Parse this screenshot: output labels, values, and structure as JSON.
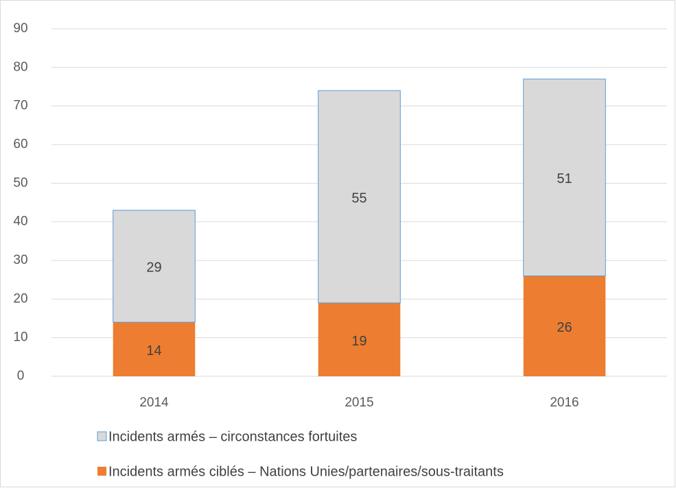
{
  "chart_data": {
    "type": "stacked_bar",
    "categories": [
      "2014",
      "2015",
      "2016"
    ],
    "series": [
      {
        "name": "Incidents armés ciblés – Nations Unies/partenaires/sous-traitants",
        "color": "#ed7d31",
        "values": [
          14,
          19,
          26
        ]
      },
      {
        "name": "Incidents armés – circonstances fortuites",
        "color": "#d9d9d9",
        "edgecolor": "#5b9bd5",
        "values": [
          29,
          55,
          51
        ]
      }
    ],
    "ylim": [
      0,
      90
    ],
    "yticks": [
      0,
      10,
      20,
      30,
      40,
      50,
      60,
      70,
      80,
      90
    ],
    "grid": true,
    "legend": "bottom",
    "data_labels": true
  }
}
